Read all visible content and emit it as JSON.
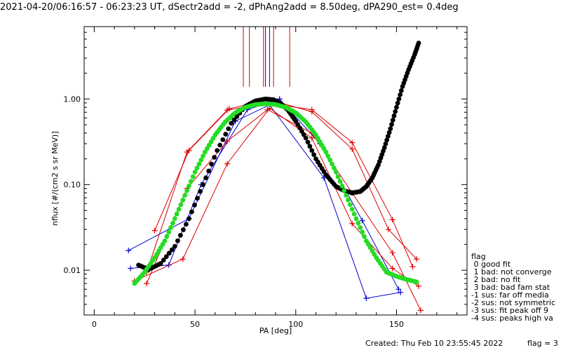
{
  "chart_data": {
    "type": "line",
    "title": "2021-04-20/06:16:57 - 06:23:23 UT, dSectr2add = -2, dPhAng2add = 8.50deg, dPA290_est=   0.4deg",
    "xlabel": "PA [deg]",
    "ylabel": "nflux [#/(cm2 s sr MeV)]",
    "xlim": [
      -5,
      185
    ],
    "ylim": [
      0.003,
      7
    ],
    "y_scale": "log",
    "grid": false,
    "x_ticks": [
      {
        "v": 0,
        "label": "0"
      },
      {
        "v": 50,
        "label": "50"
      },
      {
        "v": 100,
        "label": "100"
      },
      {
        "v": 150,
        "label": "150"
      }
    ],
    "y_ticks": [
      {
        "v": 0.01,
        "label": "0.01"
      },
      {
        "v": 0.1,
        "label": "0.10"
      },
      {
        "v": 1,
        "label": "1.00"
      }
    ],
    "series": [
      {
        "color": "#0000cc",
        "marker": "+",
        "x": [
          17,
          47,
          70,
          87,
          114,
          135,
          152
        ],
        "y": [
          0.017,
          0.04,
          0.55,
          0.85,
          0.12,
          0.0047,
          0.0055
        ]
      },
      {
        "color": "#0000cc",
        "marker": "+",
        "x": [
          18,
          37,
          53,
          76,
          92,
          112,
          133,
          151
        ],
        "y": [
          0.0105,
          0.0115,
          0.1,
          0.75,
          1.0,
          0.3,
          0.038,
          0.006
        ]
      },
      {
        "color": "#dd0000",
        "marker": "+",
        "x": [
          30,
          47,
          67,
          87,
          108,
          128,
          146,
          160
        ],
        "y": [
          0.029,
          0.25,
          0.77,
          0.98,
          0.71,
          0.26,
          0.03,
          0.0135
        ]
      },
      {
        "color": "#dd0000",
        "marker": "+",
        "x": [
          26,
          46,
          66,
          86,
          108,
          128,
          148,
          158
        ],
        "y": [
          0.0095,
          0.24,
          0.74,
          0.9,
          0.75,
          0.31,
          0.039,
          0.011
        ]
      },
      {
        "color": "#dd0000",
        "marker": "+",
        "x": [
          20,
          44,
          66,
          87,
          108,
          128,
          148,
          161
        ],
        "y": [
          0.0075,
          0.0135,
          0.175,
          0.78,
          0.35,
          0.035,
          0.0105,
          0.0065
        ]
      },
      {
        "color": "#dd0000",
        "marker": "+",
        "x": [
          26,
          46,
          66,
          86,
          108,
          128,
          148,
          162
        ],
        "y": [
          0.007,
          0.09,
          0.32,
          0.75,
          0.4,
          0.08,
          0.016,
          0.0034
        ]
      }
    ],
    "fit_lines": [
      {
        "name": "black-curve",
        "color": "#000000",
        "x": [
          22,
          27,
          33,
          40,
          47,
          54,
          61,
          68,
          75,
          80,
          85,
          89,
          92,
          96,
          100,
          105,
          110,
          115,
          120,
          124,
          128,
          132,
          135,
          138,
          141,
          144,
          147,
          150,
          153,
          156,
          159,
          161
        ],
        "y": [
          0.0115,
          0.0102,
          0.012,
          0.019,
          0.04,
          0.1,
          0.25,
          0.52,
          0.82,
          0.95,
          1.0,
          0.98,
          0.9,
          0.75,
          0.55,
          0.35,
          0.2,
          0.13,
          0.095,
          0.085,
          0.08,
          0.083,
          0.095,
          0.12,
          0.17,
          0.27,
          0.45,
          0.8,
          1.4,
          2.2,
          3.3,
          4.5
        ]
      },
      {
        "name": "green-curve",
        "color": "#22dd22",
        "x": [
          20,
          25,
          30,
          35,
          40,
          45,
          50,
          55,
          60,
          65,
          70,
          75,
          80,
          85,
          90,
          95,
          100,
          105,
          110,
          115,
          120,
          125,
          130,
          135,
          140,
          145,
          150,
          155,
          160
        ],
        "y": [
          0.007,
          0.0095,
          0.014,
          0.022,
          0.04,
          0.075,
          0.14,
          0.24,
          0.38,
          0.54,
          0.69,
          0.8,
          0.86,
          0.88,
          0.86,
          0.8,
          0.69,
          0.54,
          0.38,
          0.24,
          0.14,
          0.075,
          0.04,
          0.022,
          0.014,
          0.0095,
          0.0085,
          0.0078,
          0.0073
        ]
      }
    ],
    "top_markers": [
      {
        "x": 74,
        "color": "#dd0000"
      },
      {
        "x": 77,
        "color": "#dd0000"
      },
      {
        "x": 84,
        "color": "#dd0000"
      },
      {
        "x": 85,
        "color": "#0000cc"
      },
      {
        "x": 87,
        "color": "#0000cc"
      },
      {
        "x": 89,
        "color": "#dd0000"
      },
      {
        "x": 97,
        "color": "#dd0000"
      }
    ]
  },
  "legend": {
    "title": "flag",
    "items": [
      " 0 good fit",
      " 1 bad: not converge",
      " 2 bad: no fit",
      " 3 bad: bad fam stat",
      "-1 sus: far off media",
      "-2 sus: not symmetric",
      "-3 sus: fit peak off 9",
      "-4 sus: peaks high va"
    ]
  },
  "footer": {
    "created": "Created: Thu Feb 10 23:55:45 2022",
    "flag": "flag = 3"
  }
}
